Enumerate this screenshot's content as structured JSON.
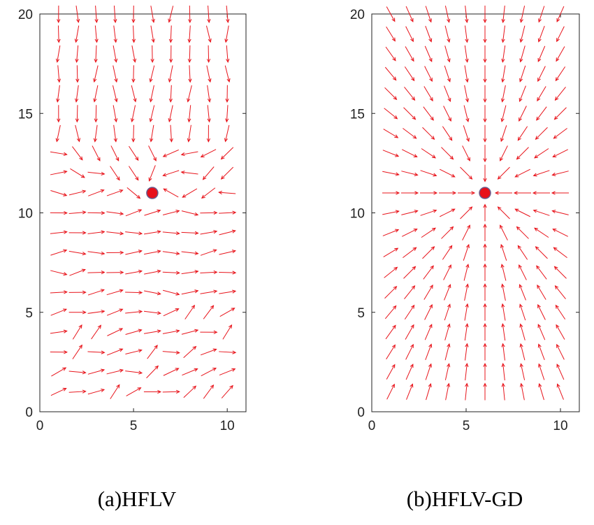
{
  "figure": {
    "panels": [
      {
        "id": "a",
        "caption": "(a)HFLV"
      },
      {
        "id": "b",
        "caption": "(b)HFLV-GD"
      }
    ]
  },
  "colors": {
    "arrow": "#e8141b",
    "goal": "#e8101a",
    "goal_edge": "#6a5a8a",
    "axes": "#222222"
  },
  "chart_data": [
    {
      "type": "quiver",
      "title": "",
      "caption": "(a)HFLV",
      "xlabel": "",
      "ylabel": "",
      "xlim": [
        0,
        11
      ],
      "ylim": [
        0,
        20
      ],
      "xticks": [
        0,
        5,
        10
      ],
      "yticks": [
        0,
        5,
        10,
        15,
        20
      ],
      "goal": {
        "x": 6,
        "y": 11
      },
      "grid_x": [
        1,
        2,
        3,
        4,
        5,
        6,
        7,
        8,
        9,
        10
      ],
      "grid_y": [
        1,
        2,
        3,
        4,
        5,
        6,
        7,
        8,
        9,
        10,
        11,
        12,
        13,
        14,
        15,
        16,
        17,
        18,
        19,
        20
      ],
      "field": "irregular",
      "field_description": "arrows point downward in upper region (y>13), curve toward the goal near y=11-13, and point mostly right/up-right in the lower region"
    },
    {
      "type": "quiver",
      "title": "",
      "caption": "(b)HFLV-GD",
      "xlabel": "",
      "ylabel": "",
      "xlim": [
        0,
        11
      ],
      "ylim": [
        0,
        20
      ],
      "xticks": [
        0,
        5,
        10
      ],
      "yticks": [
        0,
        5,
        10,
        15,
        20
      ],
      "goal": {
        "x": 6,
        "y": 11
      },
      "grid_x": [
        1,
        2,
        3,
        4,
        5,
        6,
        7,
        8,
        9,
        10
      ],
      "grid_y": [
        1,
        2,
        3,
        4,
        5,
        6,
        7,
        8,
        9,
        10,
        11,
        12,
        13,
        14,
        15,
        16,
        17,
        18,
        19,
        20
      ],
      "field": "radial-to-goal",
      "field_description": "all arrows point directly toward the goal"
    }
  ]
}
